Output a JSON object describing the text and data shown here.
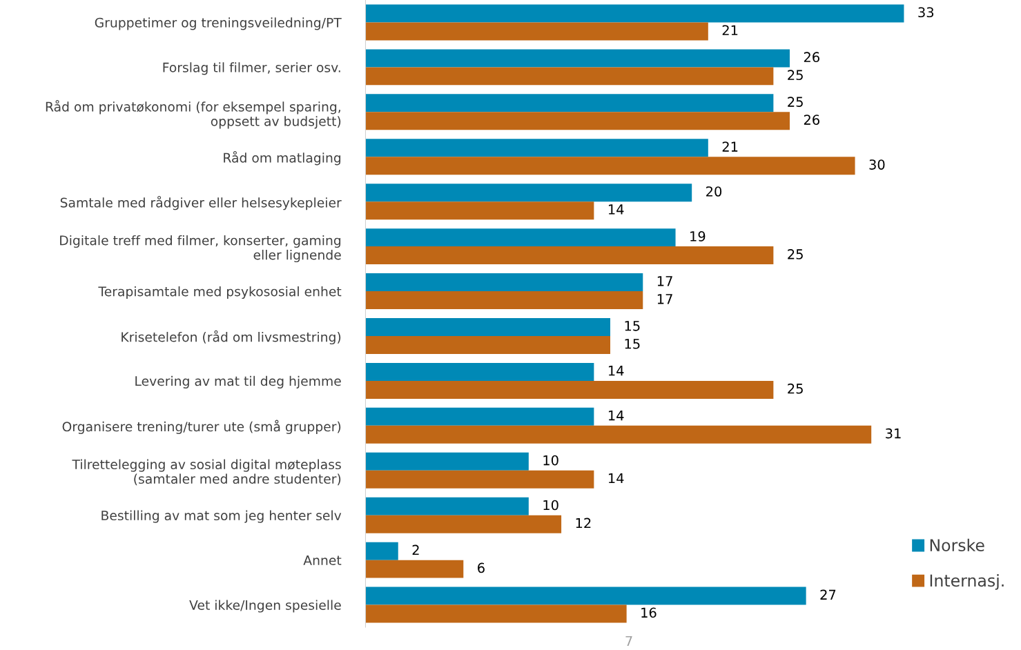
{
  "chart_data": {
    "type": "bar",
    "orientation": "horizontal",
    "data_labels": true,
    "legend": "bottom right",
    "grid": false,
    "categories": [
      "Gruppetimer og treningsveiledning/PT",
      "Forslag til filmer, serier osv.",
      "Råd om privatøkonomi (for eksempel sparing,\noppsett av budsjett)",
      "Råd om matlaging",
      "Samtale med rådgiver eller helsesykepleier",
      "Digitale treff med filmer, konserter, gaming\neller lignende",
      "Terapisamtale med psykososial enhet",
      "Krisetelefon (råd om livsmestring)",
      "Levering av mat til deg hjemme",
      "Organisere trening/turer ute (små grupper)",
      "Tilrettelegging av sosial digital møteplass\n(samtaler med andre studenter)",
      "Bestilling av mat som jeg henter selv",
      "Annet",
      "Vet ikke/Ingen spesielle"
    ],
    "series": [
      {
        "name": "Norske",
        "color": "#0089b6",
        "values": [
          33,
          26,
          25,
          21,
          20,
          19,
          17,
          15,
          14,
          14,
          10,
          10,
          2,
          27
        ]
      },
      {
        "name": "Internasj.",
        "color": "#c06716",
        "values": [
          21,
          25,
          26,
          30,
          14,
          25,
          17,
          15,
          25,
          31,
          14,
          12,
          6,
          16
        ]
      }
    ],
    "annotations": [
      "7"
    ]
  }
}
